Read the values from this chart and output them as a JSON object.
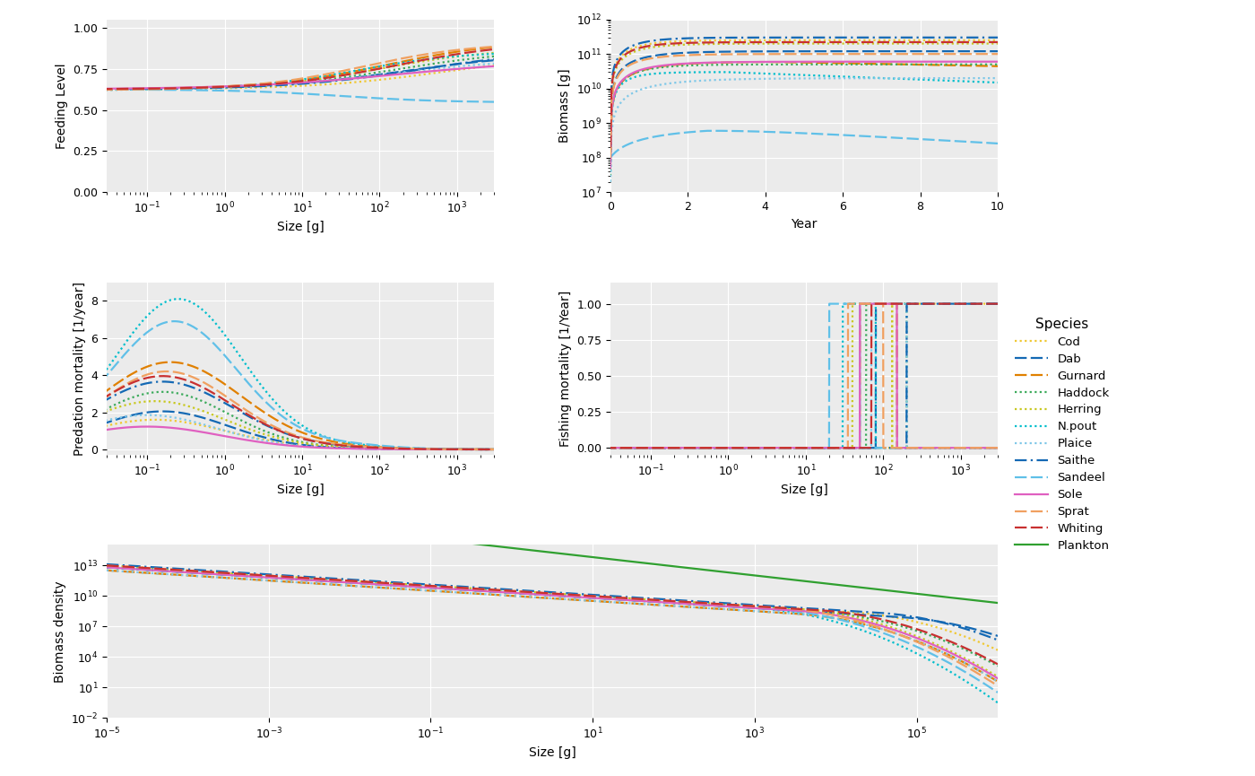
{
  "species": [
    "Cod",
    "Dab",
    "Gurnard",
    "Haddock",
    "Herring",
    "N.pout",
    "Plaice",
    "Saithe",
    "Sandeel",
    "Sole",
    "Sprat",
    "Whiting",
    "Plankton"
  ],
  "species_colors": {
    "Cod": "#F0C832",
    "Dab": "#1469B4",
    "Gurnard": "#E08000",
    "Haddock": "#3AAA5A",
    "Herring": "#C8C820",
    "N.pout": "#00BECC",
    "Plaice": "#80C8E8",
    "Saithe": "#1469B4",
    "Sandeel": "#60C0E8",
    "Sole": "#E060C0",
    "Sprat": "#F0A060",
    "Whiting": "#C83030",
    "Plankton": "#30A030"
  },
  "bg_color": "#EBEBEB",
  "grid_color": "white",
  "linewidth": 1.6,
  "feeding_xlim": [
    0.03,
    3000
  ],
  "feeding_ylim": [
    0.0,
    1.05
  ],
  "feeding_yticks": [
    0.0,
    0.25,
    0.5,
    0.75,
    1.0
  ],
  "biomass_xlim": [
    0.0,
    10.0
  ],
  "biomass_ylim_log10": [
    7,
    12
  ],
  "pred_xlim": [
    0.03,
    3000
  ],
  "pred_ylim": [
    -0.3,
    9.0
  ],
  "pred_yticks": [
    0,
    2,
    4,
    6,
    8
  ],
  "fishing_xlim": [
    0.03,
    3000
  ],
  "fishing_ylim": [
    -0.05,
    1.15
  ],
  "fishing_yticks": [
    0.0,
    0.25,
    0.5,
    0.75,
    1.0
  ],
  "bd_xlim_log10": [
    -5,
    6
  ],
  "bd_ylim_log10": [
    -2,
    15
  ]
}
